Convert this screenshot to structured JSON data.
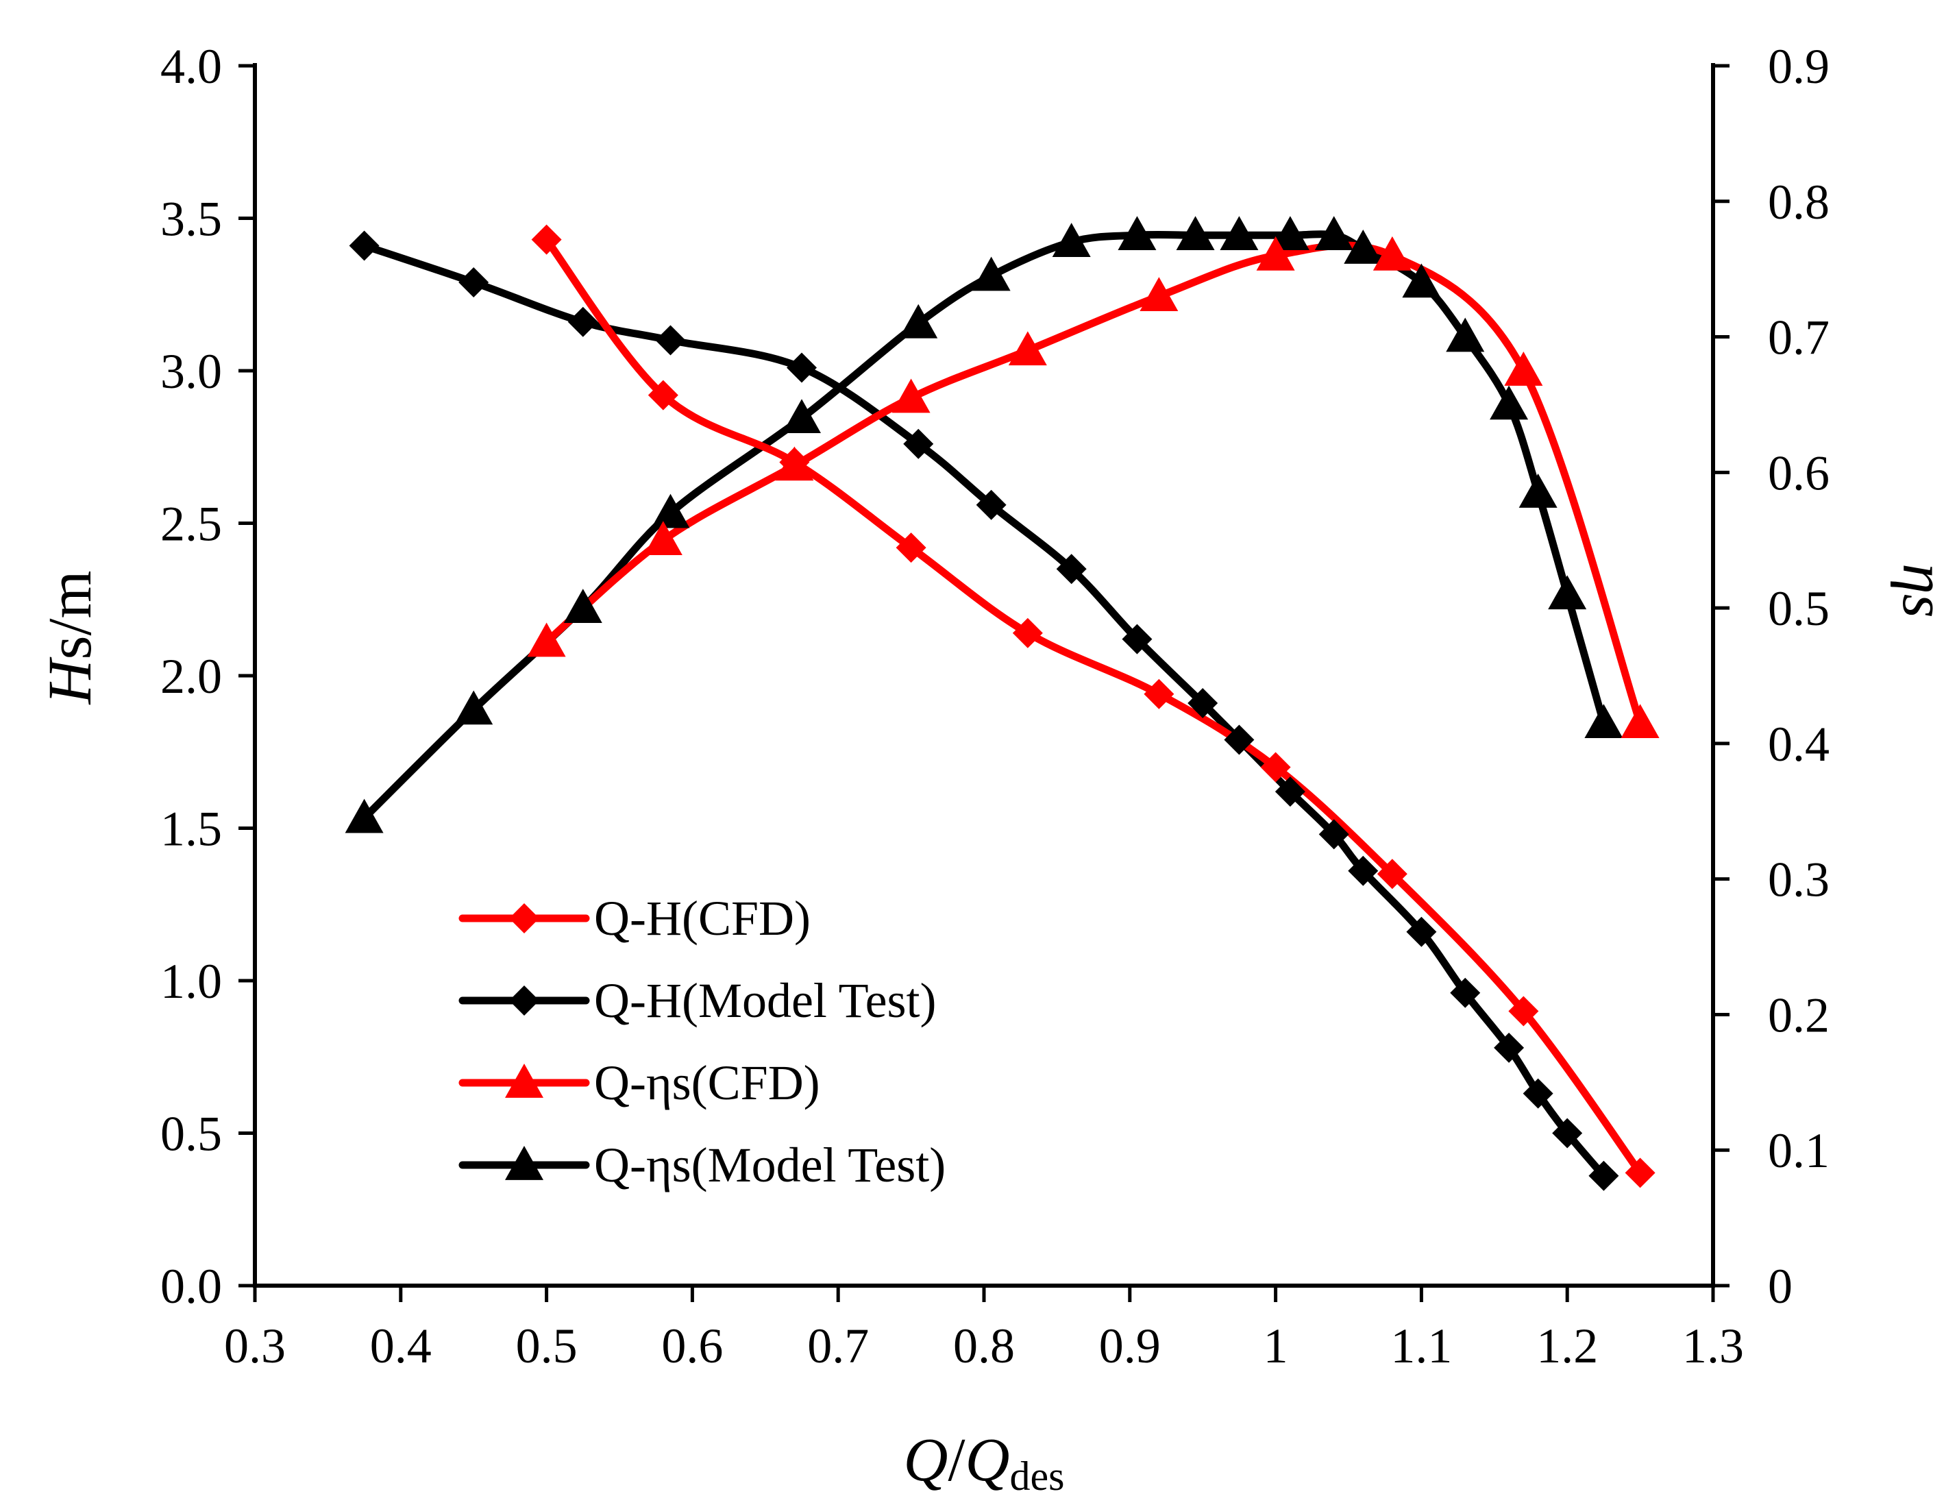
{
  "chart_data": {
    "type": "line",
    "title": "",
    "xlabel": {
      "italic": "Q",
      "slash": "/",
      "italic2": "Q",
      "sub": "des"
    },
    "ylabel_left": {
      "italic": "H",
      "rest": "s/m"
    },
    "ylabel_right": "ηs",
    "xlim": [
      0.3,
      1.3
    ],
    "ylim_left": [
      0.0,
      4.0
    ],
    "ylim_right": [
      0.0,
      0.9
    ],
    "x_ticks": [
      "0.3",
      "0.4",
      "0.5",
      "0.6",
      "0.7",
      "0.8",
      "0.9",
      "1",
      "1.1",
      "1.2",
      "1.3"
    ],
    "x_tick_values": [
      0.3,
      0.4,
      0.5,
      0.6,
      0.7,
      0.8,
      0.9,
      1.0,
      1.1,
      1.2,
      1.3
    ],
    "y_left_ticks": [
      "0.0",
      "0.5",
      "1.0",
      "1.5",
      "2.0",
      "2.5",
      "3.0",
      "3.5",
      "4.0"
    ],
    "y_left_tick_values": [
      0.0,
      0.5,
      1.0,
      1.5,
      2.0,
      2.5,
      3.0,
      3.5,
      4.0
    ],
    "y_right_ticks": [
      "0",
      "0.1",
      "0.2",
      "0.3",
      "0.4",
      "0.5",
      "0.6",
      "0.7",
      "0.8",
      "0.9"
    ],
    "y_right_tick_values": [
      0.0,
      0.1,
      0.2,
      0.3,
      0.4,
      0.5,
      0.6,
      0.7,
      0.8,
      0.9
    ],
    "grid": false,
    "legend_position": "bottom-left",
    "series": [
      {
        "name": "Q-H(CFD)",
        "axis": "left",
        "marker": "diamond",
        "color": "#ff0000",
        "x": [
          0.5,
          0.58,
          0.67,
          0.75,
          0.83,
          0.92,
          1.0,
          1.08,
          1.17,
          1.25
        ],
        "y": [
          3.43,
          2.92,
          2.7,
          2.42,
          2.14,
          1.94,
          1.7,
          1.35,
          0.9,
          0.37
        ]
      },
      {
        "name": "Q-H(Model Test)",
        "axis": "left",
        "marker": "diamond",
        "color": "#000000",
        "x": [
          0.375,
          0.45,
          0.525,
          0.585,
          0.675,
          0.755,
          0.805,
          0.86,
          0.905,
          0.95,
          0.975,
          1.01,
          1.04,
          1.06,
          1.1,
          1.13,
          1.16,
          1.18,
          1.2,
          1.225
        ],
        "y": [
          3.41,
          3.29,
          3.16,
          3.1,
          3.01,
          2.76,
          2.56,
          2.35,
          2.12,
          1.91,
          1.79,
          1.62,
          1.48,
          1.36,
          1.16,
          0.96,
          0.78,
          0.63,
          0.5,
          0.36
        ]
      },
      {
        "name": "Q-ηs(CFD)",
        "axis": "right",
        "marker": "triangle",
        "color": "#ff0000",
        "x": [
          0.5,
          0.58,
          0.67,
          0.75,
          0.83,
          0.92,
          1.0,
          1.08,
          1.17,
          1.25
        ],
        "y": [
          0.475,
          0.55,
          0.605,
          0.655,
          0.69,
          0.73,
          0.76,
          0.76,
          0.675,
          0.415
        ]
      },
      {
        "name": "Q-ηs(Model Test)",
        "axis": "right",
        "marker": "triangle",
        "color": "#000000",
        "x": [
          0.375,
          0.45,
          0.525,
          0.585,
          0.675,
          0.755,
          0.805,
          0.86,
          0.905,
          0.945,
          0.975,
          1.01,
          1.04,
          1.06,
          1.1,
          1.13,
          1.16,
          1.18,
          1.2,
          1.225
        ],
        "y": [
          0.345,
          0.425,
          0.5,
          0.57,
          0.64,
          0.71,
          0.745,
          0.77,
          0.775,
          0.775,
          0.775,
          0.775,
          0.775,
          0.765,
          0.74,
          0.7,
          0.65,
          0.585,
          0.51,
          0.415
        ]
      }
    ]
  }
}
